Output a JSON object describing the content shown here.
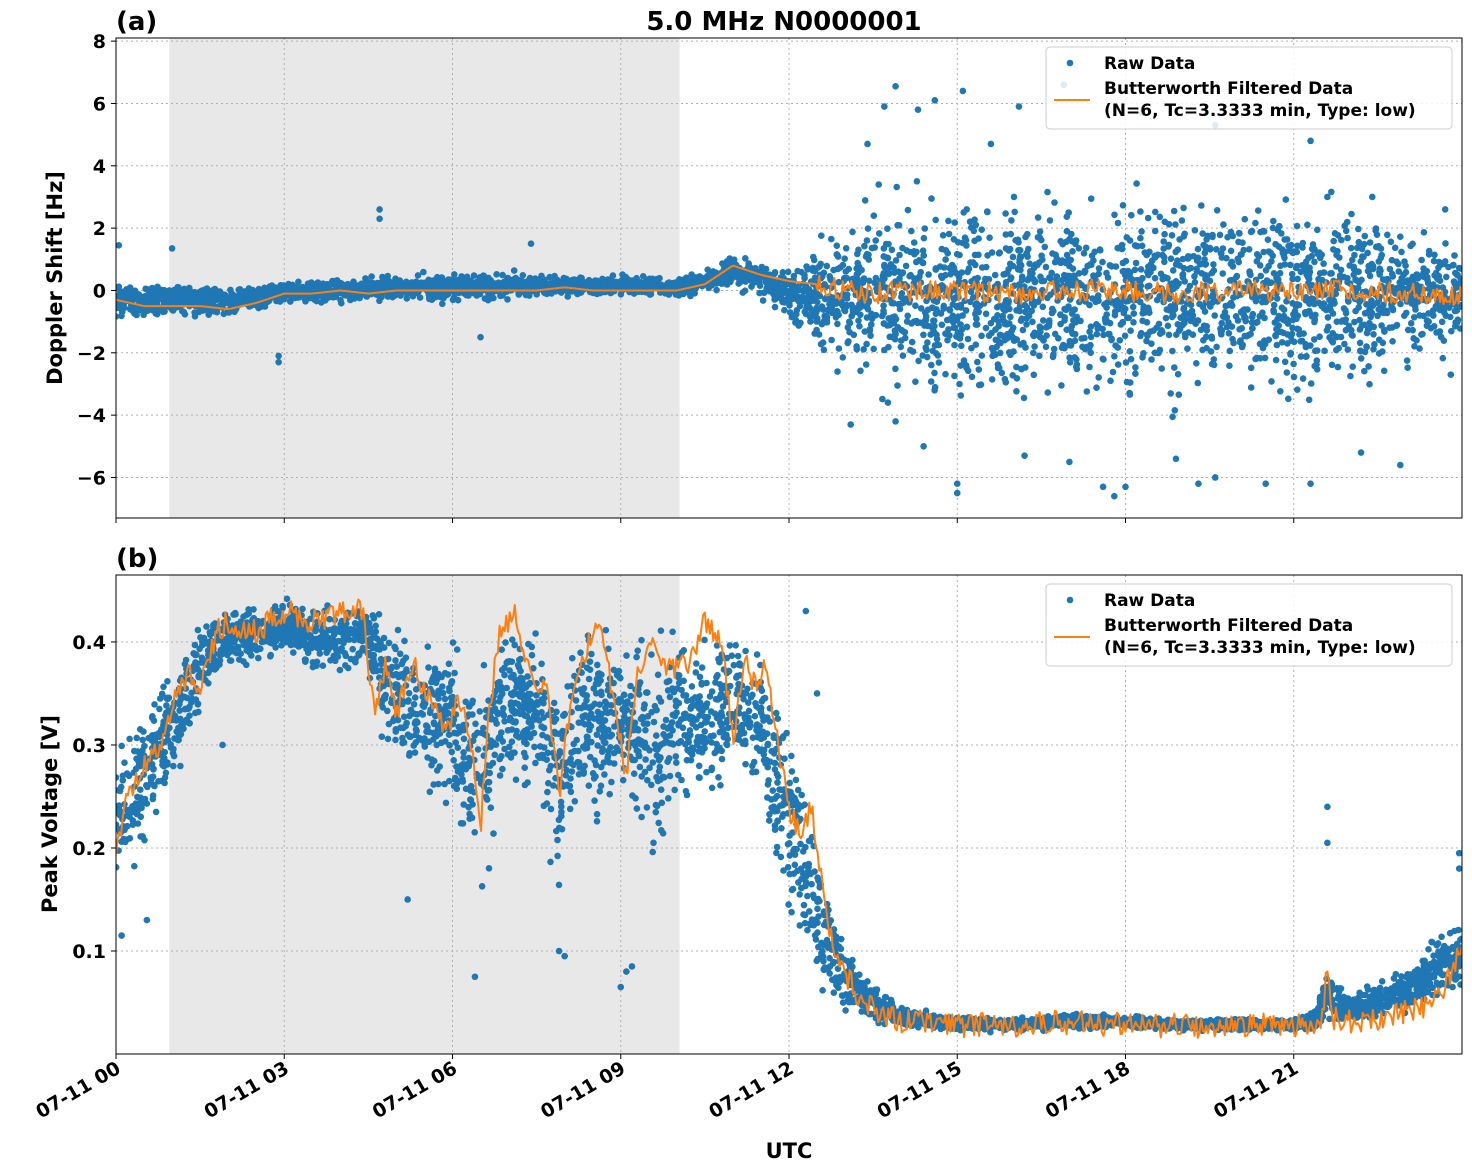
{
  "figure": {
    "title": "5.0 MHz N0000001",
    "xlabel": "UTC",
    "x_tick_labels": [
      "07-11 00",
      "07-11 03",
      "07-11 06",
      "07-11 09",
      "07-11 12",
      "07-11 15",
      "07-11 18",
      "07-11 21"
    ]
  },
  "colors": {
    "raw": "#1f77b4",
    "filtered": "#ff7f0e",
    "shade": "#e8e8e8",
    "grid": "#b0b0b0"
  },
  "chart_data": [
    {
      "type": "scatter",
      "panel_label": "(a)",
      "title": "5.0 MHz N0000001",
      "xlabel": "",
      "ylabel": "Doppler Shift [Hz]",
      "x_unit": "hours UTC since 07-11 00",
      "xlim": [
        0,
        24
      ],
      "ylim": [
        -7.3,
        8.1
      ],
      "y_ticks": [
        -6,
        -4,
        -2,
        0,
        2,
        4,
        6,
        8
      ],
      "y_tick_labels": [
        "−6",
        "−4",
        "−2",
        "0",
        "2",
        "4",
        "6",
        "8"
      ],
      "shaded_span": [
        0.95,
        10.05
      ],
      "grid": true,
      "legend": {
        "placement": "top-right",
        "raw_label": "Raw Data",
        "filtered_label_1": "Butterworth Filtered Data",
        "filtered_label_2": "(N=6, Tc=3.3333 min, Type: low)"
      },
      "series": [
        {
          "name": "Raw Data",
          "kind": "scatter-band",
          "x": [
            0,
            1,
            2,
            3,
            4,
            5,
            6,
            7,
            8,
            9,
            10,
            10.5,
            11,
            11.5,
            12,
            12.5,
            13,
            13.5,
            14,
            15,
            16,
            17,
            18,
            19,
            20,
            21,
            22,
            23,
            24
          ],
          "low": [
            -1.2,
            -1.0,
            -1.0,
            -0.5,
            -0.5,
            -0.4,
            -0.5,
            -0.4,
            -0.3,
            -0.3,
            -0.3,
            -0.2,
            0,
            -0.3,
            -1.0,
            -2.5,
            -3.5,
            -4.0,
            -4.3,
            -4.7,
            -4.8,
            -4.8,
            -4.6,
            -4.6,
            -4.5,
            -4.4,
            -4.0,
            -3.3,
            -2.0
          ],
          "high": [
            0.7,
            0.4,
            0.3,
            0.4,
            0.5,
            0.6,
            0.7,
            0.7,
            0.6,
            0.6,
            0.5,
            0.8,
            1.3,
            1.0,
            0.9,
            2.0,
            3.0,
            3.5,
            3.8,
            4.0,
            4.1,
            4.1,
            4.1,
            4.0,
            4.0,
            3.9,
            3.5,
            3.0,
            1.8
          ],
          "outliers": [
            [
              0.05,
              1.45
            ],
            [
              1.0,
              1.35
            ],
            [
              2.9,
              -2.3
            ],
            [
              2.9,
              -2.1
            ],
            [
              4.7,
              2.6
            ],
            [
              4.7,
              2.3
            ],
            [
              6.5,
              -1.5
            ],
            [
              7.4,
              1.5
            ],
            [
              13.4,
              4.7
            ],
            [
              13.6,
              3.4
            ],
            [
              13.7,
              5.9
            ],
            [
              13.9,
              6.55
            ],
            [
              14.3,
              5.8
            ],
            [
              14.6,
              6.1
            ],
            [
              15.1,
              6.4
            ],
            [
              15.6,
              4.7
            ],
            [
              16.1,
              5.9
            ],
            [
              16.9,
              6.6
            ],
            [
              18.3,
              5.7
            ],
            [
              19.6,
              5.3
            ],
            [
              21.3,
              4.8
            ],
            [
              21.6,
              3.0
            ],
            [
              22.4,
              3.0
            ],
            [
              23.7,
              2.6
            ],
            [
              13.1,
              -4.3
            ],
            [
              13.9,
              -4.2
            ],
            [
              14.4,
              -5.0
            ],
            [
              15.0,
              -6.2
            ],
            [
              15.0,
              -6.5
            ],
            [
              16.2,
              -5.3
            ],
            [
              17.0,
              -5.5
            ],
            [
              17.6,
              -6.3
            ],
            [
              17.8,
              -6.6
            ],
            [
              18.0,
              -6.3
            ],
            [
              18.9,
              -5.4
            ],
            [
              19.3,
              -6.2
            ],
            [
              19.6,
              -6.0
            ],
            [
              20.5,
              -6.2
            ],
            [
              21.3,
              -6.2
            ],
            [
              22.2,
              -5.2
            ],
            [
              22.9,
              -5.6
            ],
            [
              23.8,
              -2.7
            ]
          ]
        },
        {
          "name": "Butterworth Filtered Data (N=6, Tc=3.3333 min, Type: low)",
          "kind": "line",
          "x": [
            0,
            0.5,
            1,
            1.5,
            2,
            2.5,
            3,
            3.5,
            4,
            4.5,
            5,
            5.5,
            6,
            6.5,
            7,
            7.5,
            8,
            8.5,
            9,
            9.5,
            10,
            10.5,
            11,
            11.5,
            12,
            12.5,
            13,
            13.5,
            14,
            15,
            16,
            17,
            18,
            19,
            20,
            21,
            22,
            23,
            24
          ],
          "y": [
            -0.3,
            -0.5,
            -0.5,
            -0.5,
            -0.6,
            -0.4,
            -0.1,
            -0.1,
            0.0,
            -0.1,
            0.0,
            0.0,
            0.0,
            0.0,
            0.0,
            0.0,
            0.1,
            0.0,
            0.0,
            0.0,
            0.0,
            0.2,
            0.8,
            0.5,
            0.3,
            0.2,
            0.0,
            -0.1,
            0.0,
            0.0,
            -0.1,
            0.0,
            0.0,
            -0.1,
            0.0,
            -0.1,
            0.0,
            -0.1,
            -0.2
          ],
          "noise_from_x": 12.5,
          "noise_amplitude": 0.35
        }
      ]
    },
    {
      "type": "scatter",
      "panel_label": "(b)",
      "title": "",
      "xlabel": "UTC",
      "ylabel": "Peak Voltage [V]",
      "x_unit": "hours UTC since 07-11 00",
      "xlim": [
        0,
        24
      ],
      "ylim": [
        0.0,
        0.465
      ],
      "y_ticks": [
        0.1,
        0.2,
        0.3,
        0.4
      ],
      "y_tick_labels": [
        "0.1",
        "0.2",
        "0.3",
        "0.4"
      ],
      "shaded_span": [
        0.95,
        10.05
      ],
      "grid": true,
      "legend": {
        "placement": "top-right",
        "raw_label": "Raw Data",
        "filtered_label_1": "Butterworth Filtered Data",
        "filtered_label_2": "(N=6, Tc=3.3333 min, Type: low)"
      },
      "series": [
        {
          "name": "Raw Data",
          "kind": "scatter-band",
          "x": [
            0,
            0.5,
            1.0,
            1.5,
            2.0,
            2.5,
            3.0,
            3.5,
            4.0,
            4.5,
            4.8,
            5.2,
            5.6,
            6.0,
            6.3,
            6.5,
            6.8,
            7.2,
            7.6,
            7.9,
            8.3,
            8.8,
            9.2,
            9.6,
            10.0,
            10.5,
            11.0,
            11.5,
            11.8,
            12.2,
            12.5,
            12.8,
            13.2,
            13.6,
            14,
            15,
            16,
            17,
            18,
            19,
            20,
            21,
            21.4,
            21.6,
            22,
            23,
            24
          ],
          "low": [
            0.14,
            0.18,
            0.24,
            0.32,
            0.37,
            0.37,
            0.38,
            0.36,
            0.36,
            0.36,
            0.27,
            0.26,
            0.23,
            0.2,
            0.14,
            0.1,
            0.22,
            0.24,
            0.2,
            0.13,
            0.2,
            0.22,
            0.2,
            0.14,
            0.2,
            0.22,
            0.25,
            0.24,
            0.12,
            0.08,
            0.05,
            0.03,
            0.025,
            0.022,
            0.022,
            0.02,
            0.021,
            0.022,
            0.023,
            0.021,
            0.021,
            0.021,
            0.021,
            0.025,
            0.025,
            0.035,
            0.05
          ],
          "high": [
            0.31,
            0.36,
            0.4,
            0.43,
            0.44,
            0.445,
            0.445,
            0.445,
            0.445,
            0.445,
            0.44,
            0.43,
            0.43,
            0.43,
            0.42,
            0.42,
            0.445,
            0.445,
            0.44,
            0.43,
            0.44,
            0.44,
            0.44,
            0.44,
            0.44,
            0.44,
            0.43,
            0.41,
            0.37,
            0.33,
            0.22,
            0.15,
            0.1,
            0.07,
            0.05,
            0.038,
            0.036,
            0.042,
            0.04,
            0.036,
            0.036,
            0.036,
            0.045,
            0.09,
            0.06,
            0.09,
            0.15
          ],
          "outliers": [
            [
              0.1,
              0.115
            ],
            [
              0.55,
              0.13
            ],
            [
              1.9,
              0.3
            ],
            [
              5.2,
              0.15
            ],
            [
              6.4,
              0.075
            ],
            [
              7.9,
              0.1
            ],
            [
              8.0,
              0.095
            ],
            [
              9.0,
              0.065
            ],
            [
              9.2,
              0.085
            ],
            [
              9.1,
              0.08
            ],
            [
              12.3,
              0.43
            ],
            [
              12.5,
              0.35
            ],
            [
              21.6,
              0.24
            ],
            [
              21.6,
              0.205
            ],
            [
              23.95,
              0.195
            ],
            [
              23.95,
              0.18
            ]
          ]
        },
        {
          "name": "Butterworth Filtered Data (N=6, Tc=3.3333 min, Type: low)",
          "kind": "line",
          "x": [
            0,
            0.15,
            0.3,
            0.5,
            0.8,
            1.0,
            1.3,
            1.5,
            1.8,
            2.0,
            2.5,
            3.0,
            3.5,
            4.0,
            4.4,
            4.6,
            4.8,
            5.0,
            5.3,
            5.6,
            5.9,
            6.1,
            6.3,
            6.5,
            6.6,
            6.8,
            7.1,
            7.4,
            7.7,
            7.9,
            8.1,
            8.3,
            8.6,
            8.9,
            9.1,
            9.3,
            9.6,
            9.9,
            10.2,
            10.5,
            10.8,
            11.0,
            11.2,
            11.4,
            11.6,
            11.8,
            12.0,
            12.2,
            12.4,
            12.6,
            12.8,
            13.0,
            13.3,
            13.6,
            14.0,
            15,
            16,
            16.5,
            17,
            18,
            19,
            20,
            21,
            21.5,
            21.6,
            21.7,
            22,
            22.5,
            23,
            23.5,
            24
          ],
          "y": [
            0.2,
            0.24,
            0.26,
            0.28,
            0.3,
            0.34,
            0.37,
            0.36,
            0.41,
            0.42,
            0.41,
            0.43,
            0.42,
            0.43,
            0.43,
            0.33,
            0.38,
            0.33,
            0.38,
            0.34,
            0.31,
            0.35,
            0.31,
            0.22,
            0.3,
            0.4,
            0.43,
            0.36,
            0.35,
            0.25,
            0.34,
            0.38,
            0.42,
            0.34,
            0.27,
            0.37,
            0.4,
            0.37,
            0.38,
            0.42,
            0.4,
            0.3,
            0.38,
            0.36,
            0.38,
            0.3,
            0.24,
            0.21,
            0.24,
            0.16,
            0.1,
            0.08,
            0.05,
            0.04,
            0.032,
            0.028,
            0.028,
            0.032,
            0.03,
            0.029,
            0.027,
            0.028,
            0.029,
            0.028,
            0.085,
            0.035,
            0.032,
            0.034,
            0.04,
            0.048,
            0.1
          ],
          "noise_from_x": 0,
          "noise_amplitude": 0.012
        }
      ]
    }
  ]
}
